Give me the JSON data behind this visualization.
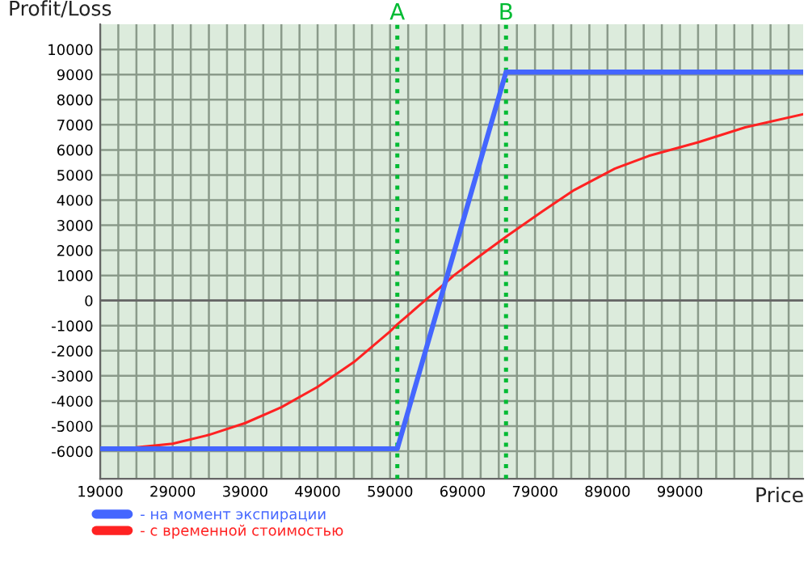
{
  "chart_data": {
    "type": "line",
    "xlabel": "Price",
    "ylabel": "Profit/Loss",
    "xlim": [
      19000,
      116000
    ],
    "ylim": [
      -7100,
      11000
    ],
    "xticks": [
      19000,
      {
        "value": 21500,
        "label": null
      },
      {
        "value": 24000,
        "label": null
      },
      {
        "value": 26500,
        "label": null
      },
      29000,
      {
        "value": 31500,
        "label": null
      },
      {
        "value": 34000,
        "label": null
      },
      {
        "value": 36500,
        "label": null
      },
      39000,
      {
        "value": 41500,
        "label": null
      },
      {
        "value": 44000,
        "label": null
      },
      {
        "value": 46500,
        "label": null
      },
      49000,
      {
        "value": 51500,
        "label": null
      },
      {
        "value": 54000,
        "label": null
      },
      {
        "value": 56500,
        "label": null
      },
      59000,
      {
        "value": 61500,
        "label": null
      },
      {
        "value": 64000,
        "label": null
      },
      {
        "value": 66500,
        "label": null
      },
      69000,
      {
        "value": 71500,
        "label": null
      },
      {
        "value": 74000,
        "label": null
      },
      {
        "value": 76500,
        "label": null
      },
      79000,
      {
        "value": 81500,
        "label": null
      },
      {
        "value": 84000,
        "label": null
      },
      {
        "value": 86500,
        "label": null
      },
      89000,
      {
        "value": 91500,
        "label": null
      },
      {
        "value": 94000,
        "label": null
      },
      {
        "value": 96500,
        "label": null
      },
      99000,
      {
        "value": 101500,
        "label": null
      },
      {
        "value": 104000,
        "label": null
      },
      {
        "value": 106500,
        "label": null
      },
      {
        "value": 109000,
        "label": null
      },
      {
        "value": 111500,
        "label": null
      },
      {
        "value": 114000,
        "label": null
      }
    ],
    "yticks": [
      -6000,
      -5000,
      -4000,
      -3000,
      -2000,
      -1000,
      0,
      1000,
      2000,
      3000,
      4000,
      5000,
      6000,
      7000,
      8000,
      9000,
      10000
    ],
    "grid": true,
    "legend": "bottom",
    "marker": "none",
    "line_style": "solid",
    "series": [
      {
        "name": "- на момент экспирации",
        "color": "#4466ff",
        "x": [
          19000,
          60000,
          75000,
          116000
        ],
        "values": [
          -5900,
          -5900,
          9100,
          9100
        ]
      },
      {
        "name": "- с временной стоимостью",
        "color": "#ff2222",
        "x": [
          19000,
          24000,
          29000,
          34000,
          39000,
          44000,
          49000,
          54000,
          59000,
          60000,
          63000,
          66650,
          67800,
          71000,
          75000,
          80000,
          84400,
          90000,
          94700,
          101500,
          108000,
          116000
        ],
        "values": [
          -5900,
          -5850,
          -5700,
          -5350,
          -4880,
          -4250,
          -3440,
          -2450,
          -1230,
          -950,
          -200,
          700,
          1000,
          1700,
          2540,
          3550,
          4400,
          5250,
          5760,
          6300,
          6900,
          7420
        ]
      }
    ],
    "ref_lines": [
      {
        "axis": "y",
        "value": 0,
        "label": null,
        "color": "#666666",
        "line_style": "solid"
      },
      {
        "axis": "x",
        "value": 60000,
        "label": "A",
        "color": "#00bb33",
        "line_style": "dotted"
      },
      {
        "axis": "x",
        "value": 75000,
        "label": "B",
        "color": "#00bb33",
        "line_style": "dotted"
      }
    ]
  }
}
